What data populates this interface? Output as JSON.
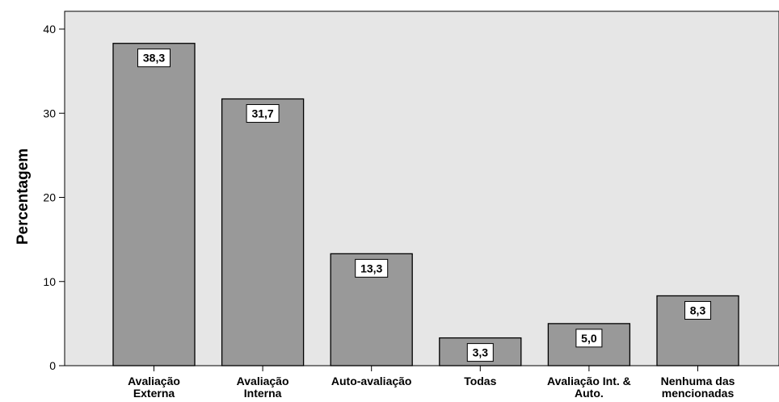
{
  "chart_data": {
    "type": "bar",
    "categories": [
      [
        "Avaliação",
        "Externa"
      ],
      [
        "Avaliação",
        "Interna"
      ],
      [
        "Auto-avaliação"
      ],
      [
        "Todas"
      ],
      [
        "Avaliação Int. &",
        "Auto."
      ],
      [
        "Nenhuma das",
        "mencionadas"
      ]
    ],
    "values": [
      38.3,
      31.7,
      13.3,
      3.3,
      5.0,
      8.3
    ],
    "data_labels": [
      "38,3",
      "31,7",
      "13,3",
      "3,3",
      "5,0",
      "8,3"
    ],
    "ylabel": "Percentagem",
    "xlabel": "",
    "ylim": [
      0,
      40
    ],
    "yticks": [
      0,
      10,
      20,
      30,
      40
    ],
    "grid": false,
    "colors": {
      "plot_background": "#e6e6e6",
      "bar_fill": "#999999",
      "bar_stroke": "#000000",
      "label_box": "#ffffff"
    }
  }
}
